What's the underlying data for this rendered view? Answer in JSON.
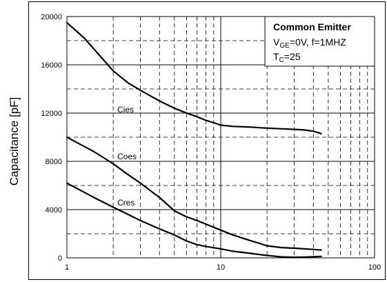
{
  "chart_data": {
    "type": "line",
    "xscale": "log",
    "xlim": [
      1,
      100
    ],
    "ylim": [
      0,
      20000
    ],
    "xticks": [
      "1",
      "10",
      "100"
    ],
    "yticks": [
      "0",
      "4000",
      "8000",
      "12000",
      "16000",
      "20000"
    ],
    "xlabel": "",
    "ylabel": "Capacitance [pF]",
    "grid": true,
    "legend": {
      "title": "Common Emitter",
      "line2_main": "V",
      "line2_sub": "GE",
      "line2_rest": "=0V, f=1MHZ",
      "line3_main": "T",
      "line3_sub": "C",
      "line3_rest": "=25",
      "placement": "top-right"
    },
    "series": [
      {
        "name": "Cies",
        "x": [
          1,
          1.3,
          1.6,
          2,
          2.5,
          3,
          4,
          5,
          6,
          7,
          8,
          9,
          10,
          12,
          15,
          20,
          25,
          30,
          35,
          40,
          45
        ],
        "y": [
          19500,
          18200,
          16900,
          15500,
          14500,
          13900,
          13000,
          12400,
          12000,
          11700,
          11400,
          11200,
          11000,
          10900,
          10850,
          10750,
          10700,
          10650,
          10600,
          10500,
          10300
        ]
      },
      {
        "name": "Coes",
        "x": [
          1,
          1.5,
          2,
          2.5,
          3,
          4,
          5,
          6,
          7,
          8,
          10,
          12,
          15,
          20,
          25,
          30,
          35,
          40,
          45
        ],
        "y": [
          10000,
          8800,
          7800,
          6900,
          6200,
          5000,
          3900,
          3400,
          3100,
          2800,
          2300,
          1900,
          1500,
          1000,
          850,
          800,
          750,
          700,
          650
        ]
      },
      {
        "name": "Cres",
        "x": [
          1,
          1.5,
          2,
          2.5,
          3,
          4,
          5,
          6,
          7,
          8,
          10,
          12,
          15,
          20,
          25,
          30,
          35,
          40,
          45
        ],
        "y": [
          6200,
          5000,
          4200,
          3600,
          3100,
          2400,
          1900,
          1400,
          1100,
          950,
          750,
          550,
          400,
          200,
          80,
          50,
          70,
          100,
          120
        ]
      }
    ]
  }
}
